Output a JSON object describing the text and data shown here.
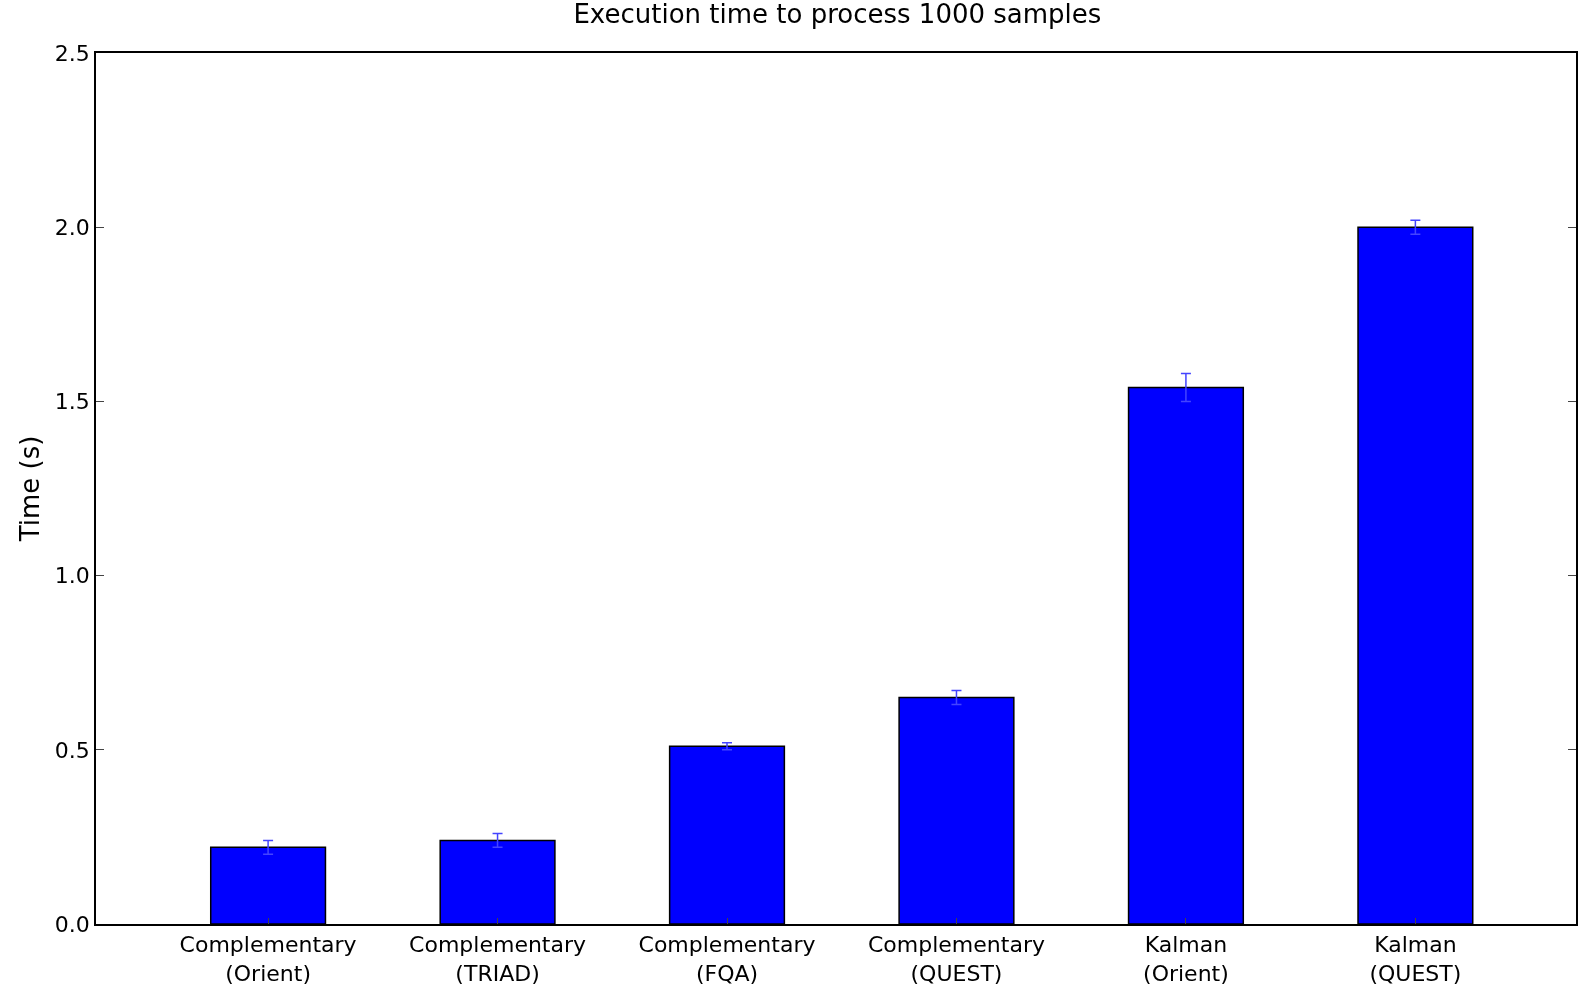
{
  "chart_data": {
    "type": "bar",
    "title": "Execution time to process 1000 samples",
    "ylabel": "Time (s)",
    "categories": [
      "Complementary\n(Orient)",
      "Complementary\n(TRIAD)",
      "Complementary\n(FQA)",
      "Complementary\n(QUEST)",
      "Kalman\n(Orient)",
      "Kalman\n(QUEST)"
    ],
    "values": [
      0.22,
      0.24,
      0.51,
      0.65,
      1.54,
      2.0
    ],
    "errors": [
      0.02,
      0.02,
      0.01,
      0.02,
      0.04,
      0.02
    ],
    "color": "#0000ff",
    "ylim": [
      0,
      2.5
    ],
    "yticks": [
      {
        "value": 0,
        "label": "0.0"
      },
      {
        "value": 0.5,
        "label": "0.5"
      },
      {
        "value": 1,
        "label": "1.0"
      },
      {
        "value": 1.5,
        "label": "1.5"
      },
      {
        "value": 2,
        "label": "2.0"
      },
      {
        "value": 2.5,
        "label": "2.5"
      }
    ]
  }
}
